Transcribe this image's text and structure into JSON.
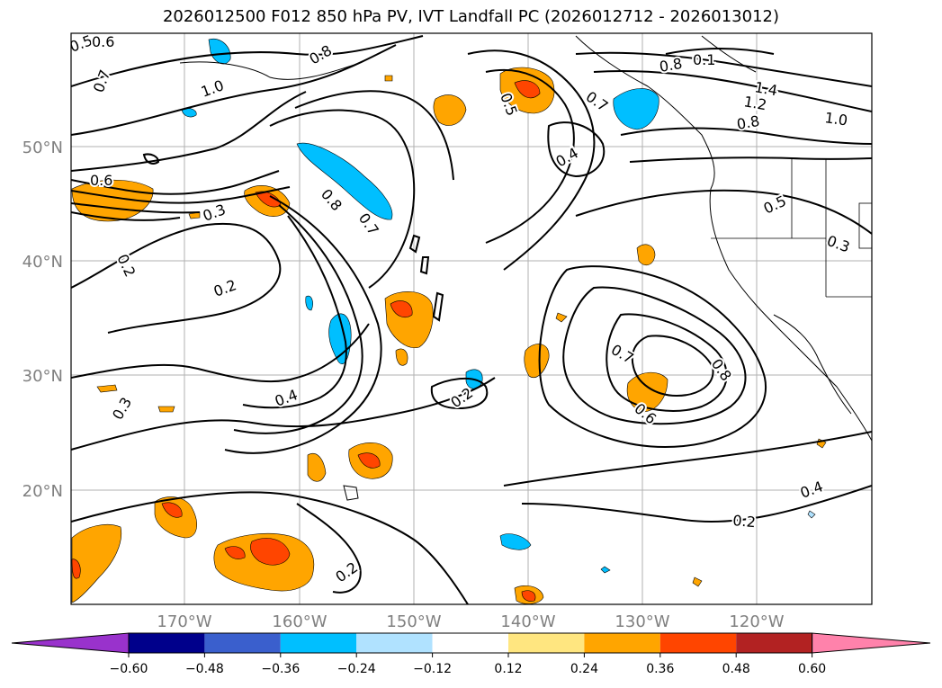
{
  "title": "2026012500 F012 850 hPa PV, IVT Landfall PC (2026012712 - 2026013012)",
  "lat_labels": [
    "50°N",
    "40°N",
    "30°N",
    "20°N"
  ],
  "lon_labels": [
    "170°W",
    "160°W",
    "150°W",
    "140°W",
    "130°W",
    "120°W"
  ],
  "colorbar": {
    "ticks": [
      "−0.60",
      "−0.48",
      "−0.36",
      "−0.24",
      "−0.12",
      "0.12",
      "0.24",
      "0.36",
      "0.48",
      "0.60"
    ],
    "colors": [
      "#9932cc",
      "#00008b",
      "#3a5fcd",
      "#00bfff",
      "#b0e2ff",
      "#ffffff",
      "#ffe680",
      "#ffa500",
      "#ff4500",
      "#b22222",
      "#ff82ab"
    ]
  },
  "contour_labels": [
    "0.5",
    "0.6",
    "0.7",
    "1.0",
    "0.8",
    "0.5",
    "0.7",
    "0.4",
    "0.8",
    "0.1",
    "1.4",
    "1.2",
    "1.0",
    "0.8",
    "0.6",
    "0.3",
    "0.8",
    "0.7",
    "0.5",
    "0.2",
    "0.2",
    "0.3",
    "0.4",
    "0.2",
    "0.7",
    "0.8",
    "0.6",
    "0.4",
    "0.2",
    "0.2",
    "0.3"
  ]
}
